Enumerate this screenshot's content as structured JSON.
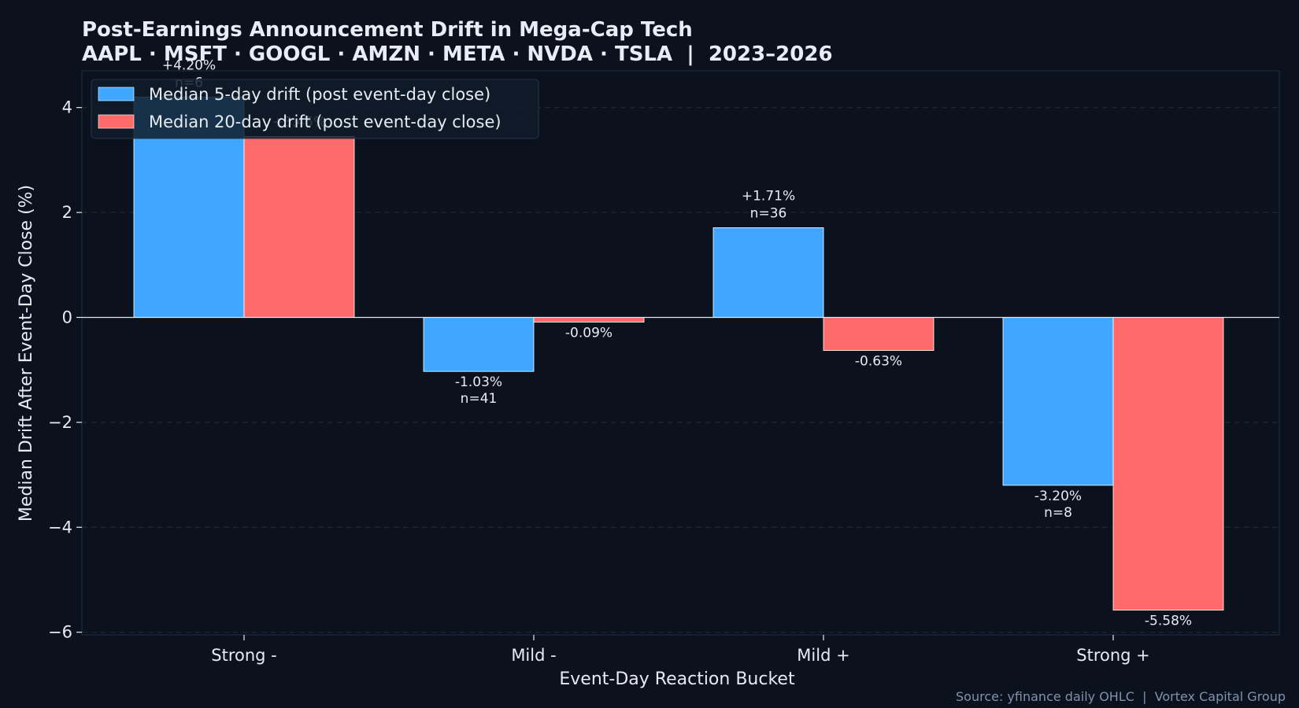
{
  "chart_data": {
    "type": "bar",
    "title": "Post-Earnings Announcement Drift in Mega-Cap Tech",
    "subtitle": "AAPL · MSFT · GOOGL · AMZN · META · NVDA · TSLA  |  2023–2026",
    "xlabel": "Event-Day Reaction Bucket",
    "ylabel": "Median Drift After Event-Day Close (%)",
    "categories": [
      "Strong -",
      "Mild -",
      "Mild +",
      "Strong +"
    ],
    "ylim": [
      -6.05,
      4.7
    ],
    "yticks": [
      -6,
      -4,
      -2,
      0,
      2,
      4
    ],
    "ytick_labels": [
      "−6",
      "−4",
      "−2",
      "0",
      "2",
      "4"
    ],
    "grid": true,
    "legend_position": "top-left",
    "series": [
      {
        "name": "Median 5-day drift (post event-day close)",
        "color": "#3fa7ff",
        "values": [
          4.2,
          -1.03,
          1.71,
          -3.2
        ],
        "labels": [
          "+4.20%",
          "-1.03%",
          "+1.71%",
          "-3.20%"
        ],
        "counts": [
          "n=6",
          "n=41",
          "n=36",
          "n=8"
        ]
      },
      {
        "name": "Median 20-day drift (post event-day close)",
        "color": "#ff6b6b",
        "values": [
          3.45,
          -0.09,
          -0.63,
          -5.58
        ],
        "labels": [
          "+3.45%",
          "-0.09%",
          "-0.63%",
          "-5.58%"
        ]
      }
    ],
    "source": "Source: yfinance daily OHLC  |  Vortex Capital Group"
  }
}
